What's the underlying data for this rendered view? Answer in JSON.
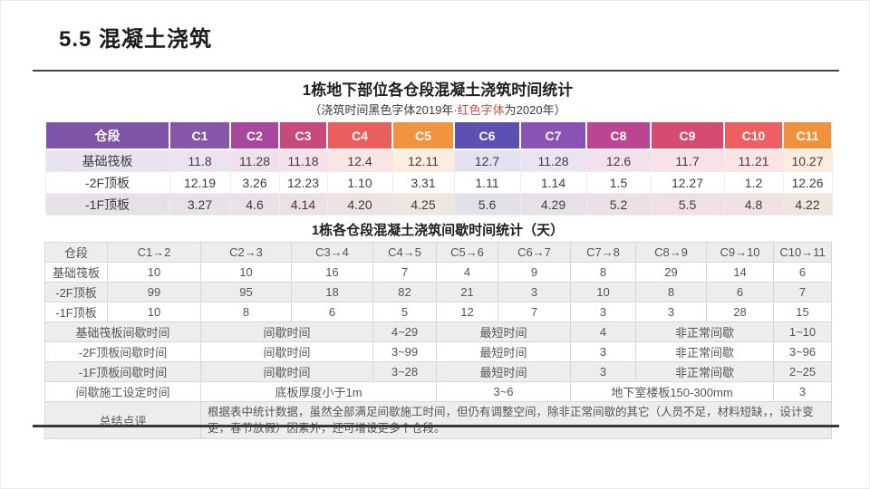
{
  "page": {
    "title": "5.5 混凝土浇筑"
  },
  "colors": {
    "red_text": "#c9504e",
    "header_gradient": [
      "#7e55a8",
      "#8656a9",
      "#a8489c",
      "#c84a7c",
      "#e95f5d",
      "#f2933f",
      "#5c50b2",
      "#8952b4",
      "#bc4591",
      "#d64b70",
      "#ee5f62",
      "#f1913d"
    ]
  },
  "table1": {
    "title": "1栋地下部位各仓段混凝土浇筑时间统计",
    "subtitle_prefix": "（浇筑时间黑色字体2019年·",
    "subtitle_red": "红色字体",
    "subtitle_suffix": "为2020年）",
    "header": [
      "仓段",
      "C1",
      "C2",
      "C3",
      "C4",
      "C5",
      "C6",
      "C7",
      "C8",
      "C9",
      "C10",
      "C11"
    ],
    "rows": [
      {
        "label": "基础筏板",
        "values": [
          "11.8",
          "11.28",
          "11.18",
          "12.4",
          "12.11",
          "12.7",
          "11.28",
          "12.6",
          "11.7",
          "11.21",
          "10.27"
        ],
        "red": [
          false,
          false,
          false,
          false,
          false,
          false,
          false,
          false,
          false,
          false,
          false
        ]
      },
      {
        "label": "-2F顶板",
        "values": [
          "12.19",
          "3.26",
          "12.23",
          "1.10",
          "3.31",
          "1.11",
          "1.14",
          "1.5",
          "12.27",
          "1.2",
          "12.26"
        ],
        "red": [
          false,
          true,
          false,
          true,
          true,
          true,
          true,
          true,
          false,
          true,
          false
        ]
      },
      {
        "label": "-1F顶板",
        "values": [
          "3.27",
          "4.6",
          "4.14",
          "4.20",
          "4.25",
          "5.6",
          "4.29",
          "5.2",
          "5.5",
          "4.8",
          "4.22"
        ],
        "red": [
          true,
          true,
          true,
          true,
          true,
          true,
          true,
          true,
          true,
          true,
          true
        ]
      }
    ]
  },
  "table2": {
    "title": "1栋各仓段混凝土浇筑间歇时间统计（天）",
    "header": [
      "仓段",
      "C1→2",
      "C2→3",
      "C3→4",
      "C4→5",
      "C5→6",
      "C6→7",
      "C7→8",
      "C8→9",
      "C9→10",
      "C10→11"
    ],
    "rows": [
      {
        "label": "基础筏板",
        "values": [
          "10",
          "10",
          "16",
          "7",
          "4",
          "9",
          "8",
          "29",
          "14",
          "6"
        ]
      },
      {
        "label": "-2F顶板",
        "values": [
          "99",
          "95",
          "18",
          "82",
          "21",
          "3",
          "10",
          "8",
          "6",
          "7"
        ]
      },
      {
        "label": "-1F顶板",
        "values": [
          "10",
          "8",
          "6",
          "5",
          "12",
          "7",
          "3",
          "3",
          "28",
          "15"
        ]
      }
    ],
    "merged_rows": [
      {
        "cells": [
          {
            "t": "基础筏板间歇时间",
            "span": 2
          },
          {
            "t": "间歇时间",
            "span": 2
          },
          {
            "t": "4~29",
            "span": 1
          },
          {
            "t": "最短时间",
            "span": 2
          },
          {
            "t": "4",
            "span": 1
          },
          {
            "t": "非正常间歇",
            "span": 2
          },
          {
            "t": "1~10",
            "span": 1
          }
        ]
      },
      {
        "cells": [
          {
            "t": "-2F顶板间歇时间",
            "span": 2
          },
          {
            "t": "间歇时间",
            "span": 2
          },
          {
            "t": "3~99",
            "span": 1
          },
          {
            "t": "最短时间",
            "span": 2
          },
          {
            "t": "3",
            "span": 1
          },
          {
            "t": "非正常间歇",
            "span": 2
          },
          {
            "t": "3~96",
            "span": 1
          }
        ]
      },
      {
        "cells": [
          {
            "t": "-1F顶板间歇时间",
            "span": 2
          },
          {
            "t": "间歇时间",
            "span": 2
          },
          {
            "t": "3~28",
            "span": 1
          },
          {
            "t": "最短时间",
            "span": 2
          },
          {
            "t": "3",
            "span": 1
          },
          {
            "t": "非正常间歇",
            "span": 2
          },
          {
            "t": "2~25",
            "span": 1
          }
        ]
      },
      {
        "cells": [
          {
            "t": "间歇施工设定时间",
            "span": 2
          },
          {
            "t": "底板厚度小于1m",
            "span": 3
          },
          {
            "t": "3~6",
            "span": 2
          },
          {
            "t": "地下室楼板150-300mm",
            "span": 3
          },
          {
            "t": "3",
            "span": 1
          }
        ]
      },
      {
        "cells": [
          {
            "t": "总结点评",
            "span": 2
          },
          {
            "t": "根据表中统计数据，虽然全部满足间歇施工时间，但仍有调整空间，除非正常间歇的其它（人员不足，材料短缺，，设计变更，春节放假）因素外，还可增设更多个仓段。",
            "span": 9,
            "summary": true
          }
        ]
      }
    ]
  }
}
